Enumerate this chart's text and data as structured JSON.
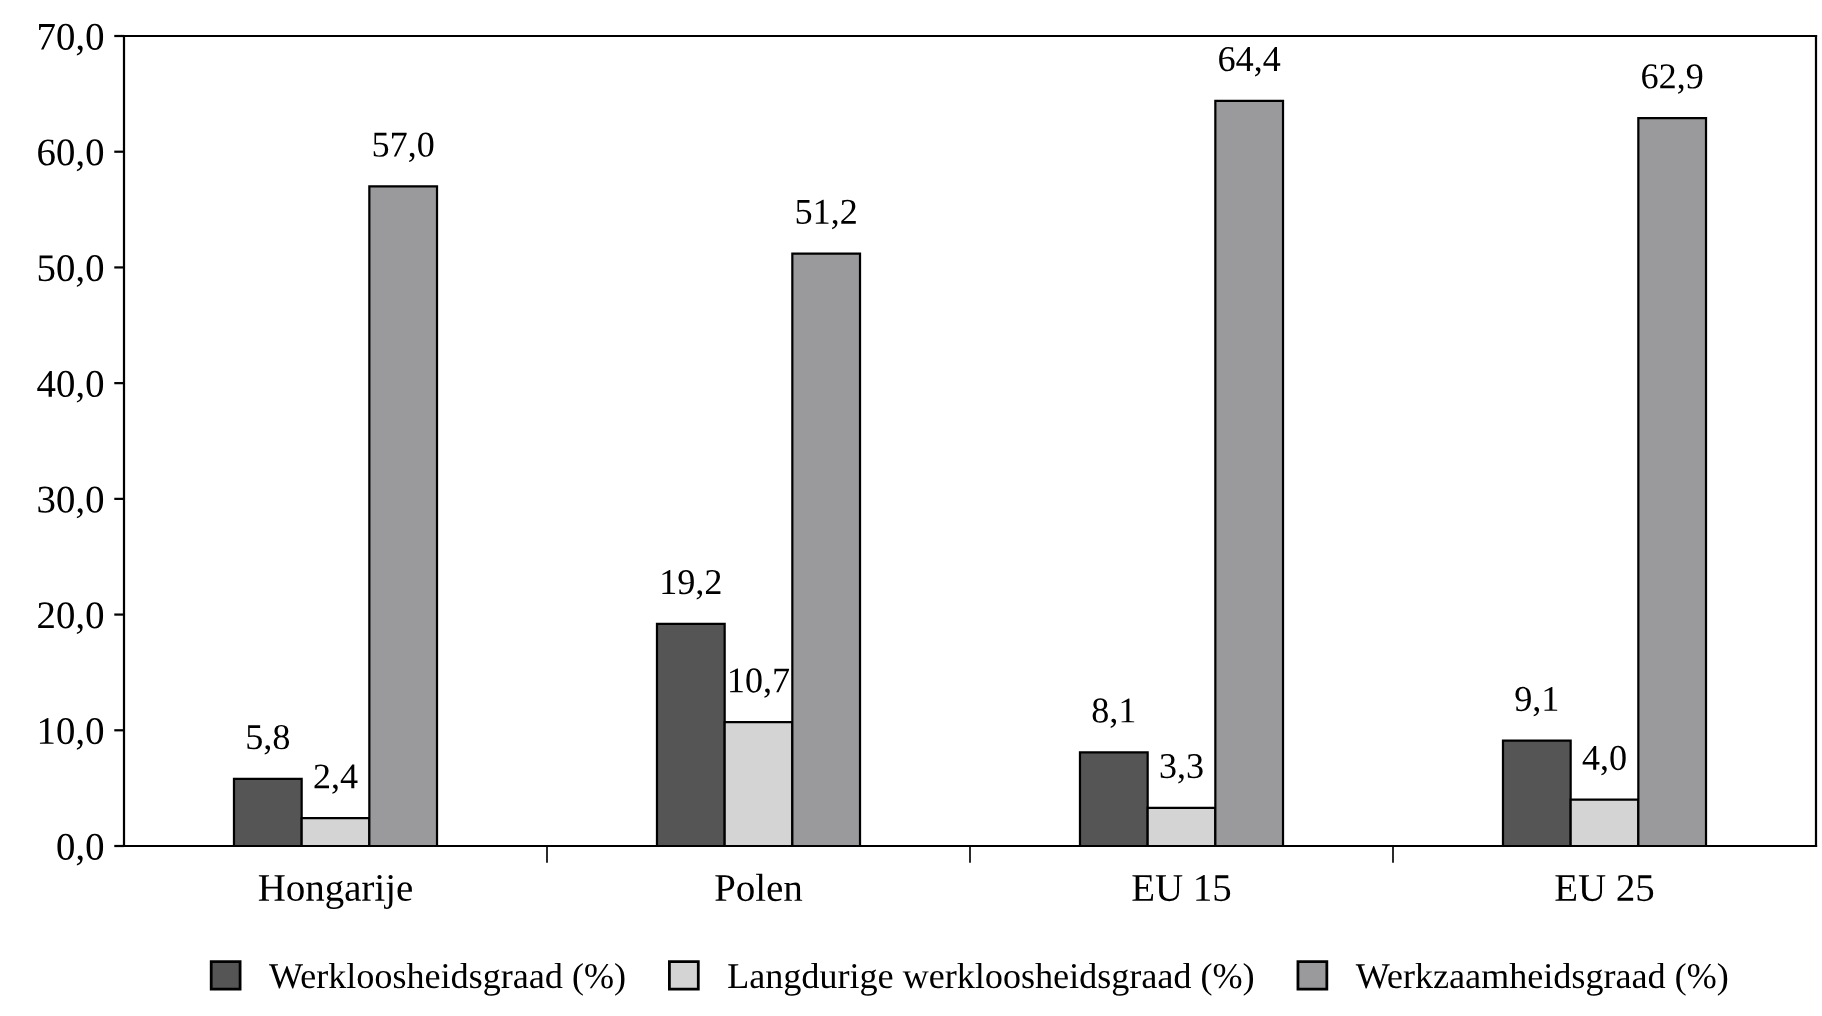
{
  "chart_data": {
    "type": "bar",
    "categories": [
      "Hongarije",
      "Polen",
      "EU 15",
      "EU 25"
    ],
    "series": [
      {
        "name": "Werkloosheidsgraad (%)",
        "color": "#555555",
        "values": [
          5.8,
          19.2,
          8.1,
          9.1
        ],
        "value_labels": [
          "5,8",
          "19,2",
          "8,1",
          "9,1"
        ]
      },
      {
        "name": "Langdurige werkloosheidsgraad (%)",
        "color": "#d4d4d4",
        "values": [
          2.4,
          10.7,
          3.3,
          4.0
        ],
        "value_labels": [
          "2,4",
          "10,7",
          "3,3",
          "4,0"
        ]
      },
      {
        "name": "Werkzaamheidsgraad (%)",
        "color": "#9a9a9c",
        "values": [
          57.0,
          51.2,
          64.4,
          62.9
        ],
        "value_labels": [
          "57,0",
          "51,2",
          "64,4",
          "62,9"
        ]
      }
    ],
    "ylim": [
      0,
      70
    ],
    "yticks": [
      {
        "value": 0,
        "label": "0,0"
      },
      {
        "value": 10,
        "label": "10,0"
      },
      {
        "value": 20,
        "label": "20,0"
      },
      {
        "value": 30,
        "label": "30,0"
      },
      {
        "value": 40,
        "label": "40,0"
      },
      {
        "value": 50,
        "label": "50,0"
      },
      {
        "value": 60,
        "label": "60,0"
      },
      {
        "value": 70,
        "label": "70,0"
      }
    ],
    "grid": false,
    "legend": "bottom"
  }
}
